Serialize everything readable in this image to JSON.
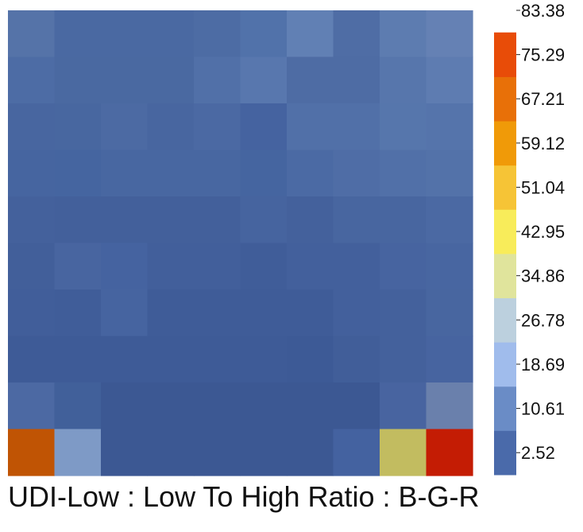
{
  "caption": "UDI-Low : Low To High Ratio : B-G-R",
  "chart_data": {
    "type": "heatmap",
    "title": "UDI-Low : Low To High Ratio : B-G-R",
    "grid": false,
    "rows": 10,
    "cols": 10,
    "row_order": "top-to-bottom",
    "values": [
      [
        6,
        4,
        4,
        4,
        5,
        6,
        9,
        5,
        8,
        10
      ],
      [
        5,
        4,
        4,
        4,
        6,
        8,
        5,
        5,
        7,
        8
      ],
      [
        4,
        4,
        5,
        4,
        5,
        4,
        6,
        6,
        7,
        7
      ],
      [
        4,
        4,
        4,
        4,
        4,
        4,
        5,
        6,
        6,
        7
      ],
      [
        4,
        4,
        3,
        3,
        3,
        4,
        4,
        5,
        5,
        6
      ],
      [
        3,
        4,
        4,
        3,
        3,
        3,
        4,
        4,
        5,
        5
      ],
      [
        3,
        3,
        4,
        3,
        3,
        3,
        3,
        4,
        4,
        5
      ],
      [
        3,
        3,
        3,
        3,
        3,
        3,
        3,
        3,
        4,
        5
      ],
      [
        6,
        4,
        3,
        3,
        3,
        3,
        3,
        3,
        5,
        10
      ],
      [
        72,
        20,
        3,
        3,
        3,
        3,
        3,
        5,
        38,
        85
      ]
    ],
    "colorbar": {
      "ticks": [
        "2.52",
        "10.61",
        "18.69",
        "26.78",
        "34.86",
        "42.95",
        "51.04",
        "59.12",
        "67.21",
        "75.29",
        "83.38"
      ],
      "boundaries": [
        2.52,
        6.56,
        10.61,
        14.65,
        18.69,
        22.73,
        26.78,
        30.82,
        34.86,
        38.91,
        42.95,
        46.99,
        51.04,
        55.08,
        59.12,
        63.16,
        67.21,
        71.25,
        75.29,
        79.33,
        83.38,
        87.42
      ],
      "colors": [
        "#4a6aaa",
        "#6a8cc6",
        "#a0bcec",
        "#bcd0de",
        "#e0e49c",
        "#f8ec5a",
        "#f6c436",
        "#f09a08",
        "#e87008",
        "#e84c08",
        "#e82c08"
      ]
    },
    "cell_colors": [
      [
        "#5573a8",
        "#4a69a2",
        "#4a69a2",
        "#4a69a2",
        "#4d6ca4",
        "#5172aa",
        "#6180b4",
        "#4f6da5",
        "#5d7cb0",
        "#6581b4"
      ],
      [
        "#4d6ca5",
        "#4a69a1",
        "#4a69a1",
        "#4a69a1",
        "#5170a8",
        "#5877ae",
        "#4e6ca4",
        "#4e6ca4",
        "#5776ac",
        "#5e7cb1"
      ],
      [
        "#4866a0",
        "#4867a0",
        "#4c6aa3",
        "#4866a0",
        "#4b69a3",
        "#4563a0",
        "#5170a8",
        "#5170a8",
        "#5676ac",
        "#5574ab"
      ],
      [
        "#4665a0",
        "#4565a0",
        "#4867a1",
        "#4867a1",
        "#4867a1",
        "#4565a0",
        "#4b6aa4",
        "#4f6da6",
        "#5170a8",
        "#5372a9"
      ],
      [
        "#44619c",
        "#43609b",
        "#43609b",
        "#43609b",
        "#43609b",
        "#46649f",
        "#44619c",
        "#4866a0",
        "#4866a0",
        "#4b69a3"
      ],
      [
        "#425f9a",
        "#4865a0",
        "#4563a0",
        "#425f9b",
        "#425f9b",
        "#405d99",
        "#43609c",
        "#43609c",
        "#4764a0",
        "#4866a1"
      ],
      [
        "#415e9a",
        "#405d99",
        "#4664a0",
        "#3f5c98",
        "#3f5c98",
        "#3f5c98",
        "#3f5c98",
        "#43609c",
        "#44619c",
        "#4866a0"
      ],
      [
        "#3e5b97",
        "#3e5b97",
        "#3e5b97",
        "#3e5b97",
        "#3e5b97",
        "#3e5b97",
        "#3d5a96",
        "#415e99",
        "#44619c",
        "#4764a0"
      ],
      [
        "#4c69a3",
        "#41609a",
        "#3c5893",
        "#3c5893",
        "#3c5893",
        "#3c5893",
        "#3c5893",
        "#3c5893",
        "#4864a0",
        "#6a80ac"
      ],
      [
        "#c05404",
        "#7e9ac6",
        "#3c5893",
        "#3c5893",
        "#3c5893",
        "#3c5893",
        "#3c5893",
        "#4462a0",
        "#c2bc60",
        "#c41c04"
      ]
    ]
  }
}
